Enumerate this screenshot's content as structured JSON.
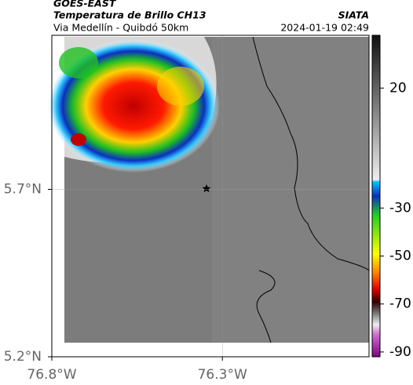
{
  "map": {
    "title": "GOES-EAST",
    "subtitle": "Temperatura de Brillo CH13",
    "source": "SIATA",
    "region": "Via Medellín - Quibdó 50km",
    "datetime": "2024-01-19 02:49",
    "xlim": [
      -76.8,
      -75.87
    ],
    "ylim": [
      5.2,
      6.16
    ],
    "xticks": [
      {
        "value": -76.8,
        "label": "76.8°W"
      },
      {
        "value": -76.3,
        "label": "76.3°W"
      }
    ],
    "yticks": [
      {
        "value": 5.2,
        "label": "5.2°N"
      },
      {
        "value": 5.7,
        "label": "5.7°N"
      }
    ],
    "colorbar": {
      "lim": [
        -92,
        42
      ],
      "ticks": [
        20,
        -30,
        -50,
        -70,
        -90
      ]
    }
  }
}
